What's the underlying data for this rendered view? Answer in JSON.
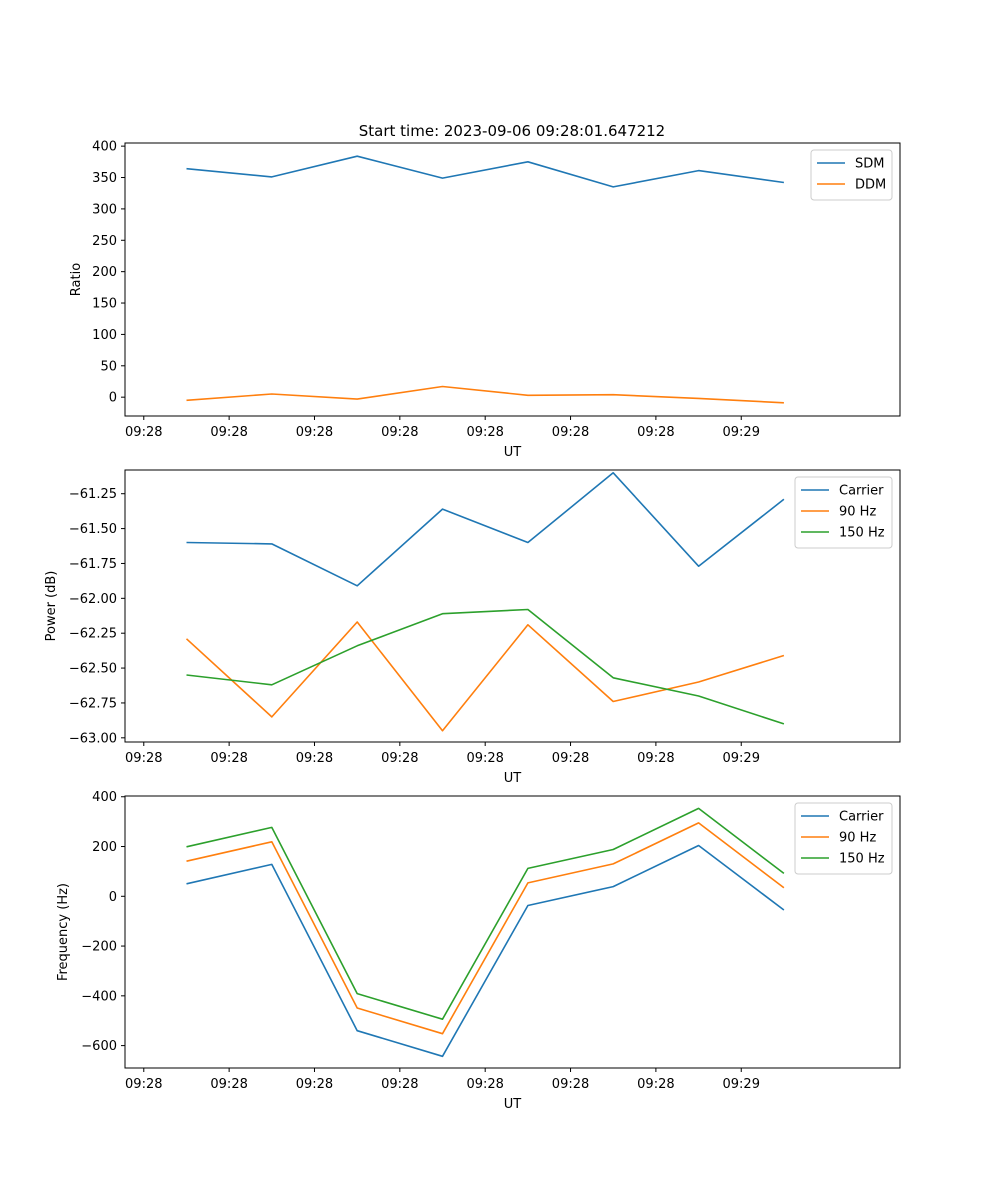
{
  "figure_title": "Start time: 2023-09-06 09:28:01.647212",
  "chart_data": [
    {
      "type": "line",
      "title": "Start time: 2023-09-06 09:28:01.647212",
      "xlabel": "UT",
      "ylabel": "Ratio",
      "x_tick_labels": [
        "09:28",
        "09:28",
        "09:28",
        "09:28",
        "09:28",
        "09:28",
        "09:28",
        "09:29"
      ],
      "xlim": [
        -0.72,
        8.36
      ],
      "ylim": [
        -30,
        405
      ],
      "y_ticks": [
        0,
        50,
        100,
        150,
        200,
        250,
        300,
        350,
        400
      ],
      "legend_position": "top-right",
      "series": [
        {
          "name": "SDM",
          "color": "#1f77b4",
          "x": [
            0,
            1,
            2,
            3,
            4,
            5,
            6,
            7
          ],
          "values": [
            364,
            351,
            384,
            349,
            375,
            335,
            361,
            342
          ]
        },
        {
          "name": "DDM",
          "color": "#ff7f0e",
          "x": [
            0,
            1,
            2,
            3,
            4,
            5,
            6,
            7
          ],
          "values": [
            -5,
            5,
            -3,
            17,
            3,
            4,
            -2,
            -9
          ]
        }
      ]
    },
    {
      "type": "line",
      "title": "",
      "xlabel": "UT",
      "ylabel": "Power (dB)",
      "x_tick_labels": [
        "09:28",
        "09:28",
        "09:28",
        "09:28",
        "09:28",
        "09:28",
        "09:28",
        "09:29"
      ],
      "xlim": [
        -0.72,
        8.36
      ],
      "ylim": [
        -63.03,
        -61.08
      ],
      "y_ticks": [
        -63.0,
        -62.75,
        -62.5,
        -62.25,
        -62.0,
        -61.75,
        -61.5,
        -61.25
      ],
      "y_tick_labels": [
        "−63.00",
        "−62.75",
        "−62.50",
        "−62.25",
        "−62.00",
        "−61.75",
        "−61.50",
        "−61.25"
      ],
      "legend_position": "top-right",
      "series": [
        {
          "name": "Carrier",
          "color": "#1f77b4",
          "x": [
            0,
            1,
            2,
            3,
            4,
            5,
            6,
            7
          ],
          "values": [
            -61.6,
            -61.61,
            -61.91,
            -61.36,
            -61.6,
            -61.1,
            -61.77,
            -61.29
          ]
        },
        {
          "name": "90 Hz",
          "color": "#ff7f0e",
          "x": [
            0,
            1,
            2,
            3,
            4,
            5,
            6,
            7
          ],
          "values": [
            -62.29,
            -62.85,
            -62.17,
            -62.95,
            -62.19,
            -62.74,
            -62.6,
            -62.41
          ]
        },
        {
          "name": "150 Hz",
          "color": "#2ca02c",
          "x": [
            0,
            1,
            2,
            3,
            4,
            5,
            6,
            7
          ],
          "values": [
            -62.55,
            -62.62,
            -62.34,
            -62.11,
            -62.08,
            -62.57,
            -62.7,
            -62.9
          ]
        }
      ]
    },
    {
      "type": "line",
      "title": "",
      "xlabel": "UT",
      "ylabel": "Frequency (Hz)",
      "x_tick_labels": [
        "09:28",
        "09:28",
        "09:28",
        "09:28",
        "09:28",
        "09:28",
        "09:28",
        "09:29"
      ],
      "xlim": [
        -0.72,
        8.36
      ],
      "ylim": [
        -690,
        403
      ],
      "y_ticks": [
        -600,
        -400,
        -200,
        0,
        200,
        400
      ],
      "y_tick_labels": [
        "−600",
        "−400",
        "−200",
        "0",
        "200",
        "400"
      ],
      "legend_position": "top-right",
      "series": [
        {
          "name": "Carrier",
          "color": "#1f77b4",
          "x": [
            0,
            1,
            2,
            3,
            4,
            5,
            6,
            7
          ],
          "values": [
            50,
            128,
            -540,
            -643,
            -37,
            39,
            204,
            -55
          ]
        },
        {
          "name": "90 Hz",
          "color": "#ff7f0e",
          "x": [
            0,
            1,
            2,
            3,
            4,
            5,
            6,
            7
          ],
          "values": [
            141,
            219,
            -449,
            -552,
            54,
            130,
            295,
            34
          ]
        },
        {
          "name": "150 Hz",
          "color": "#2ca02c",
          "x": [
            0,
            1,
            2,
            3,
            4,
            5,
            6,
            7
          ],
          "values": [
            199,
            277,
            -391,
            -494,
            112,
            188,
            353,
            92
          ]
        }
      ]
    }
  ]
}
